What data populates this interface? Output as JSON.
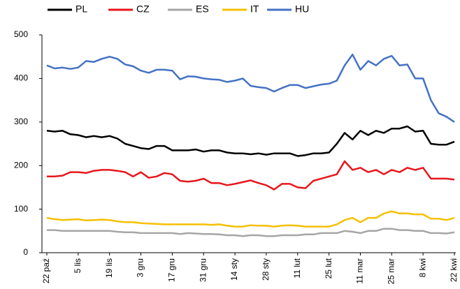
{
  "chart_data": {
    "type": "line",
    "categories": [
      "22 paź",
      null,
      null,
      null,
      "5 lis",
      null,
      null,
      null,
      "19 lis",
      null,
      null,
      null,
      "3 gru",
      null,
      null,
      null,
      "17 gru",
      null,
      null,
      null,
      "31 gru",
      null,
      null,
      null,
      "14 sty",
      null,
      null,
      null,
      "28 sty",
      null,
      null,
      null,
      "11 lut",
      null,
      null,
      null,
      "25 lut",
      null,
      null,
      null,
      "11 mar",
      null,
      null,
      null,
      "25 mar",
      null,
      null,
      null,
      "8 kwi",
      null,
      null,
      null,
      "22 kwi"
    ],
    "series": [
      {
        "name": "PL",
        "color": "#000000",
        "values": [
          280,
          278,
          280,
          272,
          270,
          265,
          268,
          265,
          268,
          262,
          250,
          245,
          240,
          238,
          245,
          245,
          235,
          235,
          235,
          237,
          232,
          235,
          235,
          230,
          228,
          228,
          226,
          228,
          225,
          228,
          228,
          228,
          222,
          224,
          228,
          228,
          230,
          250,
          275,
          260,
          280,
          270,
          280,
          275,
          285,
          285,
          290,
          278,
          280,
          250,
          248,
          248,
          255
        ]
      },
      {
        "name": "CZ",
        "color": "#e8161b",
        "values": [
          175,
          175,
          177,
          185,
          185,
          183,
          188,
          190,
          190,
          188,
          185,
          175,
          185,
          172,
          175,
          183,
          180,
          165,
          163,
          165,
          170,
          160,
          160,
          155,
          158,
          162,
          166,
          160,
          155,
          145,
          158,
          158,
          150,
          148,
          165,
          170,
          175,
          180,
          210,
          190,
          195,
          185,
          190,
          180,
          190,
          185,
          195,
          190,
          195,
          170,
          170,
          170,
          168
        ]
      },
      {
        "name": "ES",
        "color": "#a6a6a6",
        "values": [
          52,
          52,
          50,
          50,
          50,
          50,
          50,
          50,
          50,
          48,
          47,
          47,
          45,
          45,
          45,
          45,
          45,
          43,
          45,
          44,
          43,
          43,
          42,
          40,
          40,
          38,
          40,
          40,
          38,
          38,
          40,
          40,
          40,
          42,
          42,
          45,
          45,
          45,
          50,
          48,
          45,
          50,
          50,
          55,
          55,
          52,
          52,
          50,
          50,
          45,
          45,
          44,
          47
        ]
      },
      {
        "name": "IT",
        "color": "#f5c000",
        "values": [
          80,
          77,
          75,
          76,
          77,
          74,
          75,
          76,
          75,
          72,
          70,
          70,
          68,
          67,
          66,
          65,
          65,
          65,
          65,
          65,
          65,
          64,
          65,
          62,
          60,
          60,
          63,
          62,
          62,
          60,
          62,
          63,
          62,
          60,
          60,
          60,
          60,
          65,
          75,
          80,
          70,
          80,
          80,
          90,
          95,
          90,
          90,
          88,
          88,
          78,
          78,
          75,
          80
        ]
      },
      {
        "name": "HU",
        "color": "#4472c4",
        "values": [
          430,
          423,
          425,
          422,
          425,
          440,
          438,
          445,
          450,
          445,
          432,
          428,
          418,
          413,
          420,
          420,
          418,
          398,
          405,
          404,
          400,
          398,
          397,
          392,
          395,
          400,
          383,
          380,
          378,
          370,
          378,
          385,
          385,
          378,
          382,
          386,
          388,
          395,
          430,
          455,
          420,
          440,
          430,
          445,
          452,
          430,
          432,
          400,
          400,
          350,
          320,
          312,
          300
        ]
      }
    ],
    "ylim": [
      0,
      500
    ],
    "yticks": [
      0,
      100,
      200,
      300,
      400,
      500
    ]
  }
}
